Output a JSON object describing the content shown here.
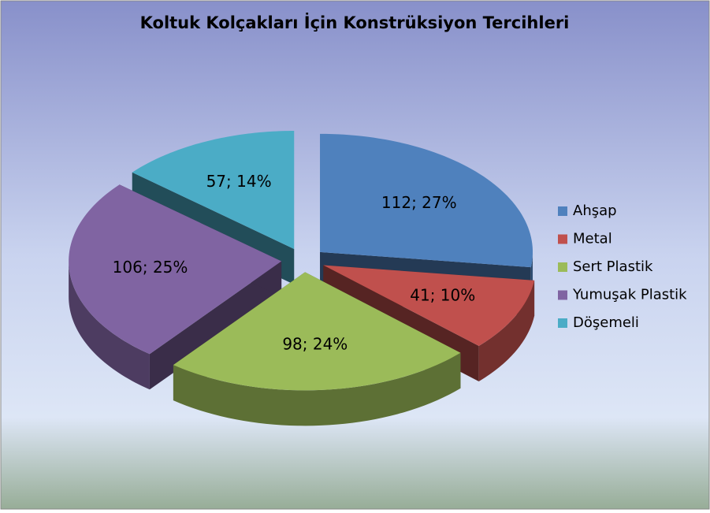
{
  "chart_data": {
    "type": "pie",
    "title": "Koltuk Kolçakları İçin Konstrüksiyon Tercihleri",
    "categories": [
      "Ahşap",
      "Metal",
      "Sert Plastik",
      "Yumuşak Plastik",
      "Döşemeli"
    ],
    "values": [
      112,
      41,
      98,
      106,
      57
    ],
    "value_labels": [
      "112; 27%",
      "41; 10%",
      "98; 24%",
      "106; 25%",
      "57; 14%"
    ],
    "colors": [
      "#4f81bd",
      "#c0504d",
      "#9bbb59",
      "#8064a2",
      "#4bacc6"
    ],
    "legend": "right"
  }
}
